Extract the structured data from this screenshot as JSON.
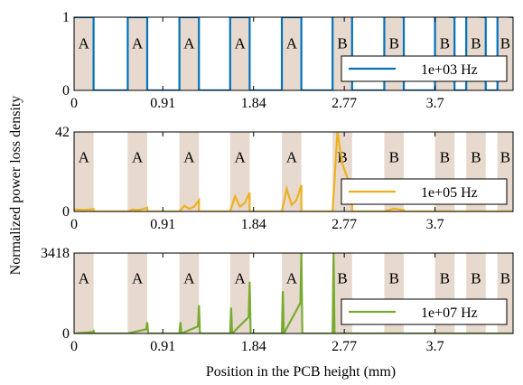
{
  "chart_data": {
    "type": "line",
    "xlabel": "Position in the PCB height (mm)",
    "ylabel": "Normalized power loss density",
    "xlim": [
      0,
      4.5
    ],
    "x_ticks": [
      "0",
      "0.91",
      "1.84",
      "2.77",
      "3.7"
    ],
    "x_tick_values": [
      0,
      0.91,
      1.84,
      2.77,
      3.7
    ],
    "shading_color": "#e7d9cd",
    "regions": [
      {
        "label": "A",
        "x": [
          0.0,
          0.2
        ]
      },
      {
        "label": "A",
        "x": [
          0.55,
          0.75
        ]
      },
      {
        "label": "A",
        "x": [
          1.08,
          1.28
        ]
      },
      {
        "label": "A",
        "x": [
          1.6,
          1.8
        ]
      },
      {
        "label": "A",
        "x": [
          2.13,
          2.33
        ]
      },
      {
        "label": "B",
        "x": [
          2.65,
          2.85
        ]
      },
      {
        "label": "B",
        "x": [
          3.18,
          3.38
        ]
      },
      {
        "label": "B",
        "x": [
          3.7,
          3.9
        ]
      },
      {
        "label": "B",
        "x": [
          4.02,
          4.22
        ]
      },
      {
        "label": "B",
        "x": [
          4.34,
          4.5
        ]
      }
    ],
    "panels": [
      {
        "legend": "1e+03 Hz",
        "color": "#0072bd",
        "ylim": [
          0,
          1
        ],
        "y_ticks": [
          "0",
          "1"
        ],
        "y_tick_values": [
          0,
          1
        ],
        "label_row": "lower",
        "series": {
          "x": [
            0.0,
            0.2,
            0.2,
            0.55,
            0.55,
            0.75,
            0.75,
            1.08,
            1.08,
            1.28,
            1.28,
            1.6,
            1.6,
            1.8,
            1.8,
            2.13,
            2.13,
            2.33,
            2.33,
            2.65,
            2.65,
            2.85,
            2.85,
            3.18,
            3.18,
            3.38,
            3.38,
            3.7,
            3.7,
            3.9,
            3.9,
            4.02,
            4.02,
            4.22,
            4.22,
            4.34,
            4.34,
            4.5
          ],
          "y": [
            1.0,
            1.0,
            0,
            0,
            1.0,
            1.0,
            0,
            0,
            1.0,
            1.0,
            0,
            0,
            1.0,
            1.0,
            0,
            0,
            1.0,
            1.0,
            0,
            0,
            1.1,
            1.06,
            0,
            0,
            1.04,
            1.0,
            0,
            0,
            1.02,
            1.0,
            0,
            0,
            1.02,
            1.0,
            0,
            0,
            1.02,
            1.0
          ]
        }
      },
      {
        "legend": "1e+05 Hz",
        "color": "#edb120",
        "ylim": [
          0,
          42
        ],
        "y_ticks": [
          "0",
          "42"
        ],
        "y_tick_values": [
          0,
          42
        ],
        "label_row": "upper",
        "series": {
          "x": [
            0.0,
            0.1,
            0.2,
            0.2,
            0.55,
            0.6,
            0.65,
            0.7,
            0.75,
            0.75,
            1.08,
            1.13,
            1.18,
            1.23,
            1.28,
            1.28,
            1.6,
            1.65,
            1.7,
            1.75,
            1.8,
            1.8,
            2.13,
            2.18,
            2.23,
            2.28,
            2.33,
            2.33,
            2.65,
            2.7,
            2.75,
            2.8,
            2.85,
            2.85,
            3.18,
            3.28,
            3.38,
            3.38,
            3.7,
            3.9,
            4.02,
            4.22,
            4.34,
            4.5
          ],
          "y": [
            1.0,
            0.8,
            1.2,
            0,
            0,
            1.0,
            0.6,
            1.2,
            2.0,
            0,
            0,
            3.0,
            1.4,
            2.5,
            6.0,
            0,
            0,
            8.0,
            2.6,
            4.5,
            10.0,
            0,
            0,
            12.0,
            3.5,
            6.0,
            14.0,
            0,
            0,
            42.0,
            25.0,
            18.0,
            13.0,
            0,
            0,
            1.5,
            0.7,
            0,
            0,
            0,
            0,
            0,
            0,
            0
          ]
        }
      },
      {
        "legend": "1e+07 Hz",
        "color": "#77ac30",
        "ylim": [
          0,
          3418
        ],
        "y_ticks": [
          "0",
          "3418"
        ],
        "y_tick_values": [
          0,
          3418
        ],
        "label_row": "upper",
        "series": {
          "x": [
            0.0,
            0.19,
            0.2,
            0.21,
            0.55,
            0.74,
            0.75,
            0.76,
            1.08,
            1.09,
            1.1,
            1.27,
            1.28,
            1.29,
            1.6,
            1.61,
            1.62,
            1.79,
            1.8,
            1.81,
            2.13,
            2.14,
            2.15,
            2.32,
            2.33,
            2.34,
            2.65,
            2.66,
            2.67,
            2.85,
            4.5
          ],
          "y": [
            0,
            60,
            110,
            0,
            0,
            180,
            480,
            0,
            0,
            480,
            0,
            300,
            1200,
            0,
            0,
            1100,
            0,
            700,
            2200,
            0,
            0,
            1800,
            0,
            1300,
            3418,
            0,
            0,
            3418,
            0,
            0,
            0
          ]
        }
      }
    ]
  }
}
